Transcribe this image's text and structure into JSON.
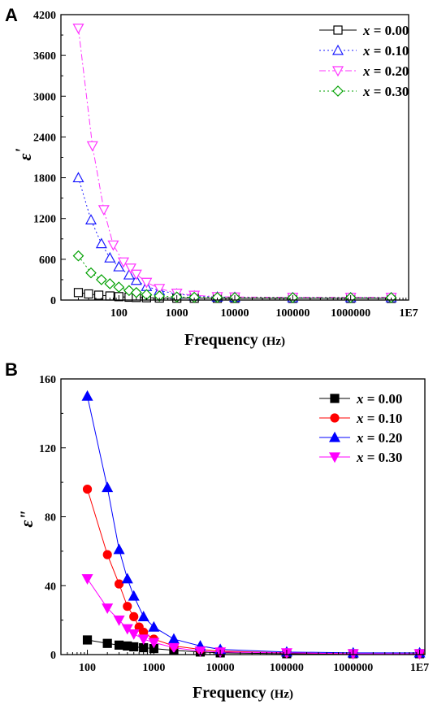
{
  "chart_data": [
    {
      "panel_label": "A",
      "type": "line",
      "xscale": "log",
      "xlabel": "Frequency",
      "xunit": "(Hz)",
      "ylabel": "ε",
      "ylabel_mark": "'",
      "xlim": [
        10,
        10000000
      ],
      "ylim": [
        0,
        4200
      ],
      "xticks": [
        100,
        1000,
        10000,
        100000,
        1000000,
        10000000
      ],
      "xtick_labels": [
        "100",
        "1000",
        "10000",
        "100000",
        "1000000",
        "1E7"
      ],
      "yticks": [
        0,
        600,
        1200,
        1800,
        2400,
        3000,
        3600,
        4200
      ],
      "ytick_labels": [
        "0",
        "600",
        "1200",
        "1800",
        "2400",
        "3000",
        "3600",
        "4200"
      ],
      "legend_position": "top-right",
      "series": [
        {
          "name": "x = 0.00",
          "var": "x",
          "rest": " = 0.00",
          "color": "#000000",
          "marker": "square-open",
          "dash": "solid",
          "x": [
            20,
            30,
            45,
            70,
            100,
            150,
            200,
            300,
            500,
            1000,
            2000,
            5000,
            10000,
            100000,
            1000000,
            5000000
          ],
          "y": [
            110,
            90,
            72,
            60,
            50,
            42,
            38,
            34,
            30,
            28,
            27,
            26,
            25,
            25,
            25,
            25
          ]
        },
        {
          "name": "x = 0.10",
          "var": "x",
          "rest": " = 0.10",
          "color": "#1a1aff",
          "marker": "triangle-up-open",
          "dash": "dotted",
          "x": [
            20,
            33,
            50,
            70,
            100,
            150,
            200,
            300,
            500,
            1000,
            2000,
            5000,
            10000,
            100000,
            1000000,
            5000000
          ],
          "y": [
            1800,
            1180,
            830,
            620,
            490,
            370,
            290,
            200,
            140,
            90,
            60,
            45,
            40,
            35,
            35,
            35
          ]
        },
        {
          "name": "x = 0.20",
          "var": "x",
          "rest": " = 0.20",
          "color": "#ff33ff",
          "marker": "triangle-down-open",
          "dash": "dashdot",
          "x": [
            20,
            35,
            55,
            80,
            120,
            160,
            200,
            300,
            500,
            1000,
            2000,
            5000,
            10000,
            100000,
            1000000,
            5000000
          ],
          "y": [
            4000,
            2270,
            1330,
            810,
            560,
            470,
            380,
            260,
            170,
            100,
            70,
            50,
            45,
            40,
            40,
            40
          ]
        },
        {
          "name": "x = 0.30",
          "var": "x",
          "rest": " = 0.30",
          "color": "#00a000",
          "marker": "diamond-open",
          "dash": "dotted",
          "x": [
            20,
            33,
            50,
            70,
            100,
            150,
            200,
            300,
            500,
            1000,
            2000,
            5000,
            10000,
            100000,
            1000000,
            5000000
          ],
          "y": [
            650,
            400,
            300,
            240,
            190,
            140,
            110,
            80,
            60,
            45,
            40,
            38,
            36,
            35,
            35,
            35
          ]
        }
      ]
    },
    {
      "panel_label": "B",
      "type": "line",
      "xscale": "log",
      "xlabel": "Frequency",
      "xunit": "(Hz)",
      "ylabel": "ε\"",
      "xlim": [
        40,
        12000000
      ],
      "ylim": [
        0,
        160
      ],
      "xticks": [
        100,
        1000,
        10000,
        100000,
        1000000,
        10000000
      ],
      "xtick_labels": [
        "100",
        "1000",
        "10000",
        "100000",
        "1000000",
        "1E7"
      ],
      "yticks": [
        0,
        40,
        80,
        120,
        160
      ],
      "ytick_labels": [
        "0",
        "40",
        "80",
        "120",
        "160"
      ],
      "legend_position": "top-right",
      "series": [
        {
          "name": "x = 0.00",
          "var": "x",
          "rest": " = 0.00",
          "color": "#000000",
          "marker": "square-filled",
          "x": [
            100,
            200,
            300,
            400,
            500,
            700,
            1000,
            2000,
            5000,
            10000,
            100000,
            1000000,
            10000000
          ],
          "y": [
            8.5,
            6.5,
            5.5,
            5,
            4.5,
            4,
            3.5,
            2.5,
            1.5,
            1,
            0.5,
            0.5,
            0.5
          ]
        },
        {
          "name": "x = 0.10",
          "var": "x",
          "rest": " = 0.10",
          "color": "#ff0000",
          "marker": "circle-filled",
          "x": [
            100,
            200,
            300,
            400,
            500,
            600,
            700,
            1000,
            2000,
            5000,
            10000,
            100000,
            1000000,
            10000000
          ],
          "y": [
            96,
            58,
            41,
            28,
            22,
            16,
            13,
            9,
            5,
            3,
            2,
            1,
            0.5,
            0.5
          ]
        },
        {
          "name": "x = 0.20",
          "var": "x",
          "rest": " = 0.20",
          "color": "#0000ff",
          "marker": "triangle-up-filled",
          "x": [
            100,
            200,
            300,
            400,
            500,
            700,
            1000,
            2000,
            5000,
            10000,
            100000,
            1000000,
            10000000
          ],
          "y": [
            150,
            97,
            61,
            44,
            34,
            22,
            16,
            9,
            5,
            3,
            1.5,
            1,
            1
          ]
        },
        {
          "name": "x = 0.30",
          "var": "x",
          "rest": " = 0.30",
          "color": "#ff00ff",
          "marker": "triangle-down-filled",
          "x": [
            100,
            200,
            300,
            400,
            500,
            700,
            1000,
            2000,
            5000,
            10000,
            100000,
            1000000,
            10000000
          ],
          "y": [
            44,
            27,
            20,
            15,
            12,
            9,
            7,
            4,
            2,
            1.5,
            1,
            0.5,
            0.5
          ]
        }
      ]
    }
  ]
}
